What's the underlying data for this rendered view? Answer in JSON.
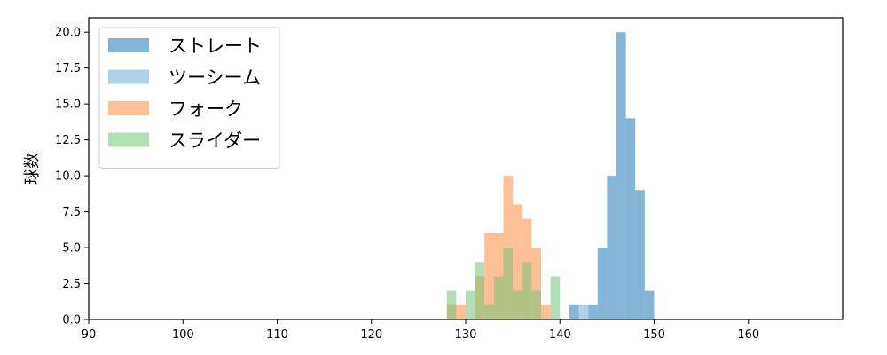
{
  "chart_data": {
    "type": "histogram",
    "xlabel": "",
    "ylabel": "球数",
    "xlim": [
      90,
      170
    ],
    "ylim": [
      0,
      21
    ],
    "xticks": [
      90,
      100,
      110,
      120,
      130,
      140,
      150,
      160
    ],
    "xtick_labels": [
      "90",
      "100",
      "110",
      "120",
      "130",
      "140",
      "150",
      "160"
    ],
    "yticks": [
      0,
      2.5,
      5,
      7.5,
      10,
      12.5,
      15,
      17.5,
      20
    ],
    "ytick_labels": [
      "0.0",
      "2.5",
      "5.0",
      "7.5",
      "10.0",
      "12.5",
      "15.0",
      "17.5",
      "20.0"
    ],
    "grid": false,
    "legend_position": "top-left",
    "series": [
      {
        "name": "ストレート",
        "color": "#1f77b4",
        "bins": [
          {
            "x0": 141.0,
            "x1": 142.0,
            "count": 1
          },
          {
            "x0": 143.0,
            "x1": 144.0,
            "count": 1
          },
          {
            "x0": 144.0,
            "x1": 145.0,
            "count": 5
          },
          {
            "x0": 145.0,
            "x1": 146.0,
            "count": 10
          },
          {
            "x0": 146.0,
            "x1": 147.0,
            "count": 20
          },
          {
            "x0": 147.0,
            "x1": 148.0,
            "count": 14
          },
          {
            "x0": 148.0,
            "x1": 149.0,
            "count": 9
          },
          {
            "x0": 149.0,
            "x1": 150.0,
            "count": 2
          }
        ]
      },
      {
        "name": "ツーシーム",
        "color": "#6baed6",
        "bins": [
          {
            "x0": 142.0,
            "x1": 143.0,
            "count": 1
          }
        ]
      },
      {
        "name": "フォーク",
        "color": "#fd8d3c",
        "bins": [
          {
            "x0": 128.0,
            "x1": 129.0,
            "count": 1
          },
          {
            "x0": 129.0,
            "x1": 130.0,
            "count": 1
          },
          {
            "x0": 131.0,
            "x1": 132.0,
            "count": 3
          },
          {
            "x0": 132.0,
            "x1": 133.0,
            "count": 6
          },
          {
            "x0": 133.0,
            "x1": 134.0,
            "count": 6
          },
          {
            "x0": 134.0,
            "x1": 135.0,
            "count": 10
          },
          {
            "x0": 135.0,
            "x1": 136.0,
            "count": 8
          },
          {
            "x0": 136.0,
            "x1": 137.0,
            "count": 7
          },
          {
            "x0": 137.0,
            "x1": 138.0,
            "count": 5
          },
          {
            "x0": 138.0,
            "x1": 139.0,
            "count": 1
          }
        ]
      },
      {
        "name": "スライダー",
        "color": "#74c476",
        "bins": [
          {
            "x0": 128.0,
            "x1": 129.0,
            "count": 2
          },
          {
            "x0": 130.0,
            "x1": 131.0,
            "count": 2
          },
          {
            "x0": 131.0,
            "x1": 132.0,
            "count": 4
          },
          {
            "x0": 132.0,
            "x1": 133.0,
            "count": 1
          },
          {
            "x0": 133.0,
            "x1": 134.0,
            "count": 3
          },
          {
            "x0": 134.0,
            "x1": 135.0,
            "count": 5
          },
          {
            "x0": 135.0,
            "x1": 136.0,
            "count": 2
          },
          {
            "x0": 136.0,
            "x1": 137.0,
            "count": 4
          },
          {
            "x0": 137.0,
            "x1": 138.0,
            "count": 2
          },
          {
            "x0": 139.0,
            "x1": 140.0,
            "count": 3
          }
        ]
      }
    ]
  }
}
